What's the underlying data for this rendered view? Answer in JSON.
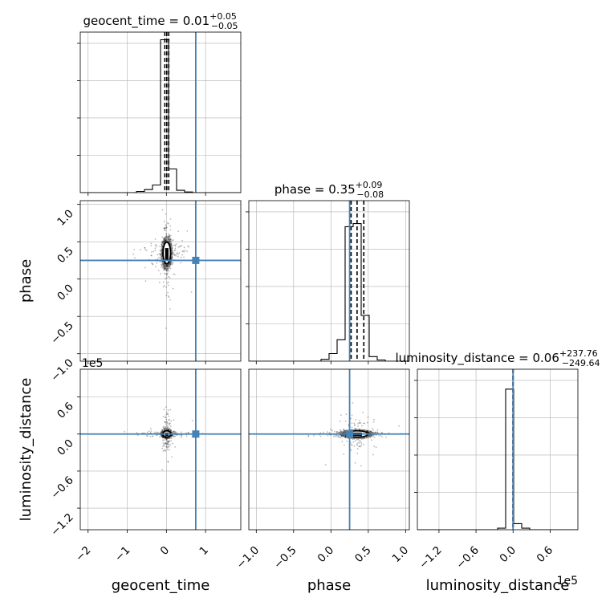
{
  "chart_data": {
    "type": "corner",
    "colors": {
      "truth": "#4682b4",
      "hist": "#000000",
      "grid": "#b0b0b0",
      "points": "#000000"
    },
    "grid": true,
    "truths": {
      "geocent_time": 0.75,
      "phase": 0.25,
      "luminosity_distance": 0
    },
    "parameters": [
      {
        "name": "geocent_time",
        "xlabel": "geocent_time",
        "title_main": "geocent_time = 0.01",
        "title_sup": "+0.05",
        "title_sub": "−0.05",
        "range": [
          -2.2,
          1.9
        ],
        "ticks": [
          -2,
          -1,
          0,
          1
        ],
        "tick_labels": [
          "−2",
          "−1",
          "0",
          "1"
        ],
        "quantiles": [
          -0.04,
          0.01,
          0.06
        ],
        "hist": {
          "edges": [
            -2.2,
            -1.995,
            -1.79,
            -1.585,
            -1.38,
            -1.175,
            -0.97,
            -0.765,
            -0.56,
            -0.355,
            -0.15,
            0.055,
            0.26,
            0.465,
            0.67,
            0.875,
            1.08,
            1.285,
            1.49,
            1.695,
            1.9
          ],
          "counts": [
            0,
            0,
            0,
            0,
            0,
            0,
            0,
            0.008,
            0.02,
            0.05,
            1.0,
            0.155,
            0.015,
            0.004,
            0,
            0,
            0,
            0,
            0,
            0
          ]
        }
      },
      {
        "name": "phase",
        "xlabel": "phase",
        "ylabel": "phase",
        "title_main": "phase = 0.35",
        "title_sup": "+0.09",
        "title_sub": "−0.08",
        "range": [
          -1.1,
          1.05
        ],
        "ticks": [
          -1.0,
          -0.5,
          0.0,
          0.5,
          1.0
        ],
        "tick_labels": [
          "−1.0",
          "−0.5",
          "0.0",
          "0.5",
          "1.0"
        ],
        "quantiles": [
          0.27,
          0.35,
          0.44
        ],
        "hist": {
          "edges": [
            -1.1,
            -0.9925,
            -0.885,
            -0.7775,
            -0.67,
            -0.5625,
            -0.455,
            -0.3475,
            -0.24,
            -0.1325,
            -0.025,
            0.0825,
            0.19,
            0.2975,
            0.405,
            0.5125,
            0.62,
            0.7275,
            0.835,
            0.9425,
            1.05
          ],
          "counts": [
            0,
            0,
            0,
            0,
            0,
            0,
            0,
            0,
            0,
            0.012,
            0.05,
            0.14,
            0.88,
            0.9,
            0.3,
            0.03,
            0.008,
            0,
            0,
            0
          ]
        }
      },
      {
        "name": "luminosity_distance",
        "xlabel": "luminosity_distance",
        "ylabel": "luminosity_distance",
        "title_main": "luminosity_distance = 0.06",
        "title_sup": "+237.76",
        "title_sub": "−249.64",
        "offset_label": "1e5",
        "range": [
          -155000,
          105000
        ],
        "ticks": [
          -120000,
          -60000,
          0,
          60000
        ],
        "tick_labels": [
          "−1.2",
          "−0.6",
          "0.0",
          "0.6"
        ],
        "quantiles": [
          -250,
          0,
          238
        ],
        "hist": {
          "edges": [
            -155000,
            -142000,
            -129000,
            -116000,
            -103000,
            -90000,
            -77000,
            -64000,
            -51000,
            -38000,
            -25000,
            -12000,
            1000,
            14000,
            27000,
            40000,
            53000,
            66000,
            79000,
            92000,
            105000
          ],
          "counts": [
            0,
            0,
            0,
            0,
            0,
            0,
            0,
            0,
            0,
            0,
            0.01,
            0.92,
            0.04,
            0.01,
            0,
            0,
            0,
            0,
            0,
            0
          ]
        }
      }
    ]
  }
}
